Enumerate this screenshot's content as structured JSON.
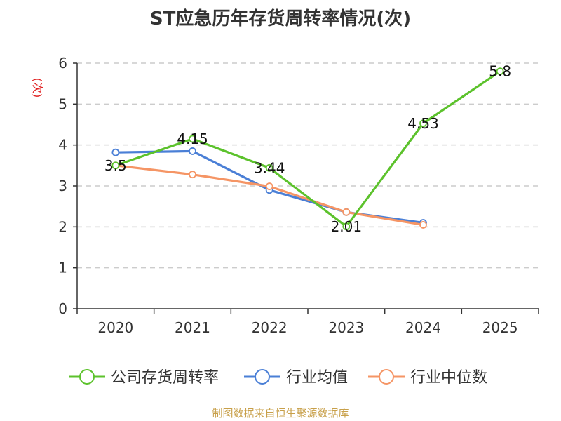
{
  "title": "ST应急历年存货周转率情况(次)",
  "source": "制图数据来自恒生聚源数据库",
  "chart_data": {
    "type": "line",
    "ylabel": "(次)",
    "ylabel_color": "#e02020",
    "categories": [
      "2020",
      "2021",
      "2022",
      "2023",
      "2024",
      "2025"
    ],
    "ylim": [
      0,
      6
    ],
    "yticks": [
      0,
      1,
      2,
      3,
      4,
      5,
      6
    ],
    "grid": true,
    "legend_position": "bottom",
    "series": [
      {
        "name": "公司存货周转率",
        "color": "#5cc22c",
        "values": [
          3.5,
          4.15,
          3.44,
          2.01,
          4.53,
          5.8
        ],
        "labels": [
          "3.5",
          "4.15",
          "3.44",
          "2.01",
          "4.53",
          "5.8"
        ]
      },
      {
        "name": "行业均值",
        "color": "#4a7fd6",
        "values": [
          3.82,
          3.85,
          2.9,
          2.36,
          2.1,
          null
        ]
      },
      {
        "name": "行业中位数",
        "color": "#f59565",
        "values": [
          3.5,
          3.28,
          2.99,
          2.36,
          2.05,
          null
        ]
      }
    ]
  }
}
